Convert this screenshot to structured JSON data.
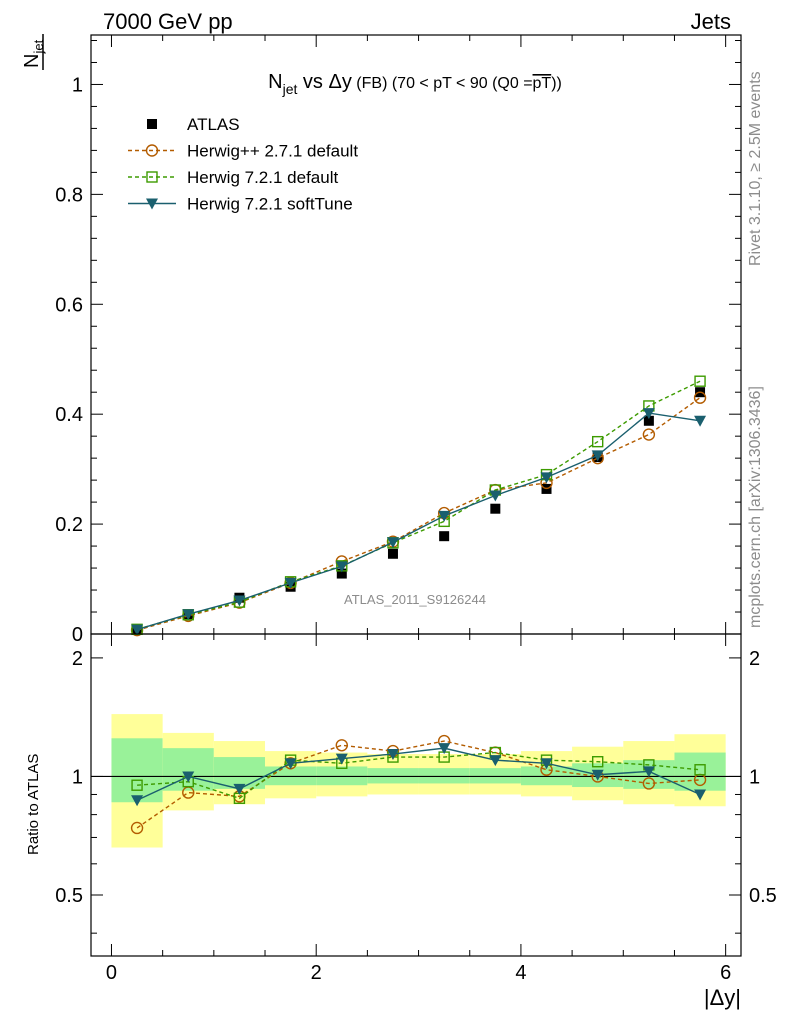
{
  "header": {
    "left": "7000 GeV pp",
    "right": "Jets",
    "side_top": "Rivet 3.1.10, ≥ 2.5M events",
    "side_bottom": "mcplots.cern.ch [arXiv:1306.3436]",
    "watermark": "ATLAS_2011_S9126244"
  },
  "chart_data": [
    {
      "type": "line",
      "title": {
        "main": "N",
        "sub": "jet",
        "rest": " vs Δy",
        "small": " (FB) (70 < pT <  90 (Q0 =",
        "overline": "pT",
        "end": "))"
      },
      "ylabel": {
        "main": "N",
        "sub": "jet"
      },
      "xlabel": "",
      "xlim": [
        -0.2,
        6.15
      ],
      "ylim": [
        0,
        1.09
      ],
      "yticks": [
        0,
        0.2,
        0.4,
        0.6,
        0.8,
        1
      ],
      "ytick_labels": [
        "0",
        "0.2",
        "0.4",
        "0.6",
        "0.8",
        "1"
      ],
      "legend_position": "top-left",
      "x": [
        0.25,
        0.75,
        1.25,
        1.75,
        2.25,
        2.75,
        3.25,
        3.75,
        4.25,
        4.75,
        5.25,
        5.75
      ],
      "series": [
        {
          "name": "ATLAS",
          "style": "data",
          "color": "#000000",
          "values": [
            0.009,
            0.036,
            0.066,
            0.086,
            0.11,
            0.146,
            0.178,
            0.228,
            0.264,
            0.322,
            0.388,
            0.44
          ]
        },
        {
          "name": "Herwig++ 2.7.1 default",
          "style": "circle-dashed",
          "color": "#b35c00",
          "values": [
            0.007,
            0.033,
            0.057,
            0.093,
            0.132,
            0.168,
            0.22,
            0.262,
            0.275,
            0.32,
            0.363,
            0.43
          ]
        },
        {
          "name": "Herwig 7.2.1 default",
          "style": "square-dashed",
          "color": "#3d9b00",
          "values": [
            0.0085,
            0.035,
            0.058,
            0.095,
            0.124,
            0.166,
            0.205,
            0.262,
            0.29,
            0.35,
            0.415,
            0.46
          ]
        },
        {
          "name": "Herwig 7.2.1 softTune",
          "style": "triangle-solid",
          "color": "#1a5f6e",
          "values": [
            0.008,
            0.036,
            0.061,
            0.093,
            0.123,
            0.167,
            0.215,
            0.252,
            0.285,
            0.325,
            0.402,
            0.388
          ]
        }
      ]
    },
    {
      "type": "line",
      "ylabel": "Ratio to ATLAS",
      "xlabel": "|Δy|",
      "xlim": [
        -0.2,
        6.15
      ],
      "ylim": [
        0.35,
        2.3
      ],
      "xticks": [
        0,
        2,
        4,
        6
      ],
      "xtick_labels": [
        "0",
        "2",
        "4",
        "6"
      ],
      "yticks": [
        0.5,
        1,
        2
      ],
      "ytick_labels": [
        "0.5",
        "1",
        "2"
      ],
      "x": [
        0.25,
        0.75,
        1.25,
        1.75,
        2.25,
        2.75,
        3.25,
        3.75,
        4.25,
        4.75,
        5.25,
        5.75
      ],
      "bands": {
        "bins": [
          0,
          0.5,
          1.0,
          1.5,
          2.0,
          2.5,
          3.0,
          3.5,
          4.0,
          4.5,
          5.0,
          5.5,
          6.0
        ],
        "inner_color": "#99f299",
        "outer_color": "#ffff99",
        "inner": [
          [
            0.86,
            1.25
          ],
          [
            0.92,
            1.18
          ],
          [
            0.93,
            1.12
          ],
          [
            0.95,
            1.06
          ],
          [
            0.95,
            1.06
          ],
          [
            0.96,
            1.05
          ],
          [
            0.96,
            1.05
          ],
          [
            0.96,
            1.05
          ],
          [
            0.95,
            1.06
          ],
          [
            0.94,
            1.08
          ],
          [
            0.93,
            1.1
          ],
          [
            0.92,
            1.15
          ]
        ],
        "outer": [
          [
            0.66,
            1.44
          ],
          [
            0.82,
            1.29
          ],
          [
            0.85,
            1.23
          ],
          [
            0.88,
            1.16
          ],
          [
            0.89,
            1.15
          ],
          [
            0.9,
            1.14
          ],
          [
            0.9,
            1.14
          ],
          [
            0.9,
            1.14
          ],
          [
            0.89,
            1.16
          ],
          [
            0.87,
            1.19
          ],
          [
            0.85,
            1.23
          ],
          [
            0.84,
            1.28
          ]
        ]
      },
      "series": [
        {
          "name": "Herwig++ 2.7.1 default",
          "style": "circle-dashed",
          "color": "#b35c00",
          "values": [
            0.74,
            0.91,
            0.89,
            1.08,
            1.2,
            1.16,
            1.23,
            1.15,
            1.04,
            1.0,
            0.96,
            0.98
          ]
        },
        {
          "name": "Herwig 7.2.1 default",
          "style": "square-dashed",
          "color": "#3d9b00",
          "values": [
            0.95,
            0.97,
            0.88,
            1.1,
            1.08,
            1.12,
            1.12,
            1.15,
            1.1,
            1.09,
            1.07,
            1.04
          ]
        },
        {
          "name": "Herwig 7.2.1 softTune",
          "style": "triangle-solid",
          "color": "#1a5f6e",
          "values": [
            0.87,
            1.0,
            0.93,
            1.08,
            1.11,
            1.14,
            1.18,
            1.1,
            1.08,
            1.01,
            1.03,
            0.9
          ]
        }
      ]
    }
  ]
}
